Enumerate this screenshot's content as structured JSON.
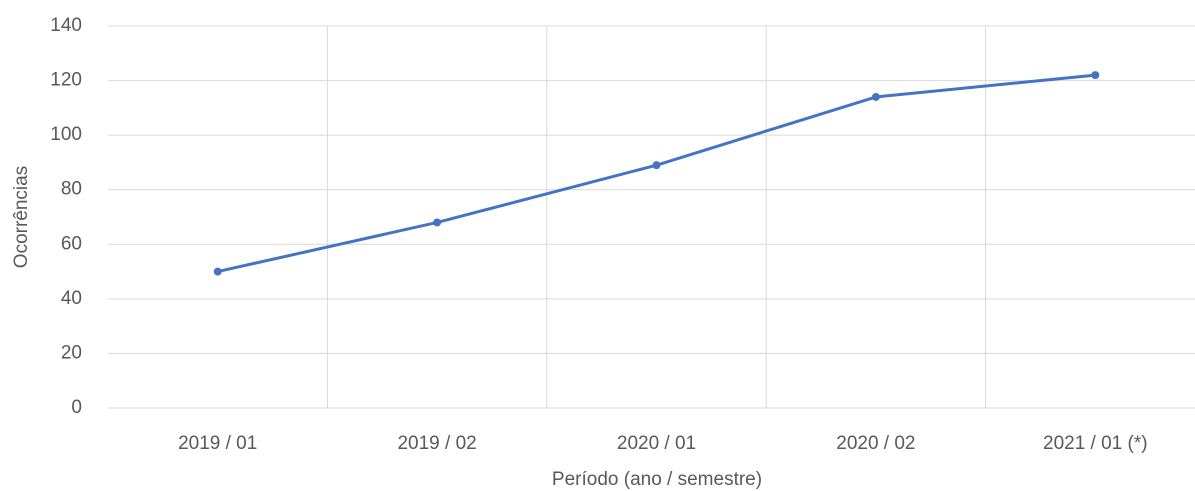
{
  "chart_data": {
    "type": "line",
    "xlabel": "Período (ano / semestre)",
    "ylabel": "Ocorrências",
    "categories": [
      "2019 / 01",
      "2019 / 02",
      "2020 / 01",
      "2020 / 02",
      "2021 / 01 (*)"
    ],
    "values": [
      50,
      68,
      89,
      114,
      122
    ],
    "color": "#4472c4",
    "ylim": [
      0,
      140
    ],
    "yticks": [
      0,
      20,
      40,
      60,
      80,
      100,
      120,
      140
    ],
    "grid": true
  }
}
